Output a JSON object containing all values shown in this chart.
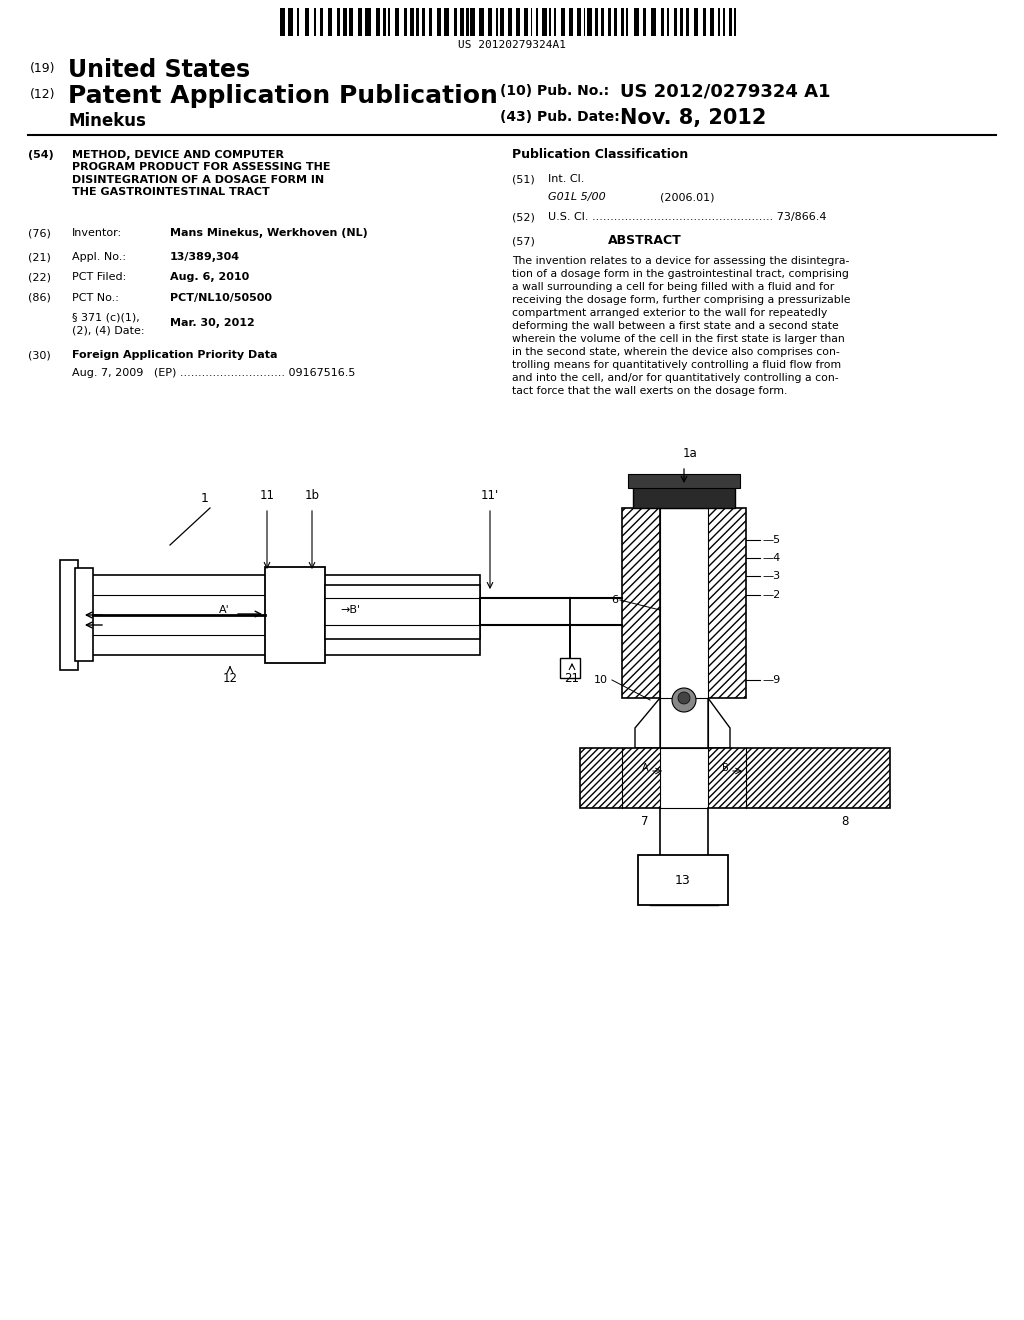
{
  "bg_color": "#ffffff",
  "barcode_text": "US 20120279324A1",
  "section54_title": "METHOD, DEVICE AND COMPUTER\nPROGRAM PRODUCT FOR ASSESSING THE\nDISINTEGRATION OF A DOSAGE FORM IN\nTHE GASTROINTESTINAL TRACT",
  "section76_val": "Mans Minekus, Werkhoven (NL)",
  "section21_val": "13/389,304",
  "section22_val": "Aug. 6, 2010",
  "section86_val": "PCT/NL10/50500",
  "section86b_val": "Mar. 30, 2012",
  "section30_entry": "Aug. 7, 2009   (EP) ............................. 09167516.5",
  "section51_val_italic": "G01L 5/00",
  "section51_val_year": "(2006.01)",
  "section52_label": "U.S. Cl. .................................................. 73/866.4",
  "abstract_text": "The invention relates to a device for assessing the disintegra-\ntion of a dosage form in the gastrointestinal tract, comprising\na wall surrounding a cell for being filled with a fluid and for\nreceiving the dosage form, further comprising a pressurizable\ncompartment arranged exterior to the wall for repeatedly\ndeforming the wall between a first state and a second state\nwherein the volume of the cell in the first state is larger than\nin the second state, wherein the device also comprises con-\ntrolling means for quantitatively controlling a fluid flow from\nand into the cell, and/or for quantitatively controlling a con-\ntact force that the wall exerts on the dosage form."
}
